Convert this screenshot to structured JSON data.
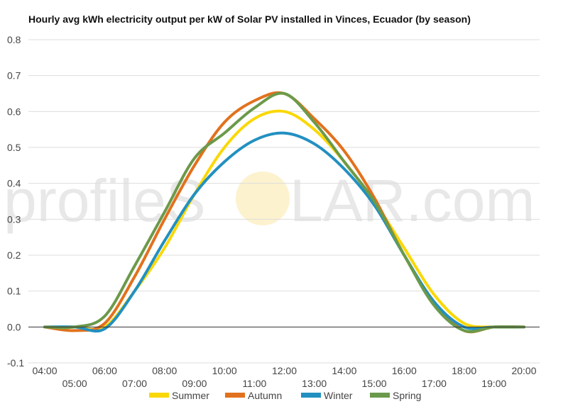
{
  "chart_data": {
    "type": "line",
    "title": "Hourly avg kWh electricity output per kW of Solar PV installed in Vinces, Ecuador (by season)",
    "watermark": {
      "left": "profileS",
      "right": "LAR.com",
      "sun_color": "#f9e7a6"
    },
    "x": [
      "04:00",
      "05:00",
      "06:00",
      "07:00",
      "08:00",
      "09:00",
      "10:00",
      "11:00",
      "12:00",
      "13:00",
      "14:00",
      "15:00",
      "16:00",
      "17:00",
      "18:00",
      "19:00",
      "20:00"
    ],
    "ylim": [
      -0.1,
      0.8
    ],
    "yticks": [
      "-0.1",
      "0.0",
      "0.1",
      "0.2",
      "0.3",
      "0.4",
      "0.5",
      "0.6",
      "0.7",
      "0.8"
    ],
    "grid": true,
    "legend_position": "bottom",
    "series": [
      {
        "name": "Summer",
        "color": "#fad808",
        "values": [
          0.0,
          0.0,
          0.0,
          0.1,
          0.22,
          0.37,
          0.5,
          0.58,
          0.6,
          0.55,
          0.46,
          0.35,
          0.22,
          0.09,
          0.01,
          0.0,
          0.0
        ]
      },
      {
        "name": "Autumn",
        "color": "#e2711d",
        "values": [
          0.0,
          -0.01,
          0.01,
          0.14,
          0.3,
          0.45,
          0.57,
          0.63,
          0.65,
          0.58,
          0.49,
          0.36,
          0.2,
          0.07,
          -0.01,
          0.0,
          0.0
        ]
      },
      {
        "name": "Winter",
        "color": "#2290c0",
        "values": [
          0.0,
          0.0,
          -0.005,
          0.1,
          0.24,
          0.37,
          0.46,
          0.52,
          0.54,
          0.51,
          0.44,
          0.34,
          0.2,
          0.07,
          0.0,
          0.0,
          0.0
        ]
      },
      {
        "name": "Spring",
        "color": "#6b9a4a",
        "values": [
          0.0,
          0.0,
          0.03,
          0.17,
          0.32,
          0.47,
          0.54,
          0.61,
          0.65,
          0.57,
          0.46,
          0.35,
          0.2,
          0.06,
          -0.01,
          0.0,
          0.0
        ]
      }
    ]
  }
}
